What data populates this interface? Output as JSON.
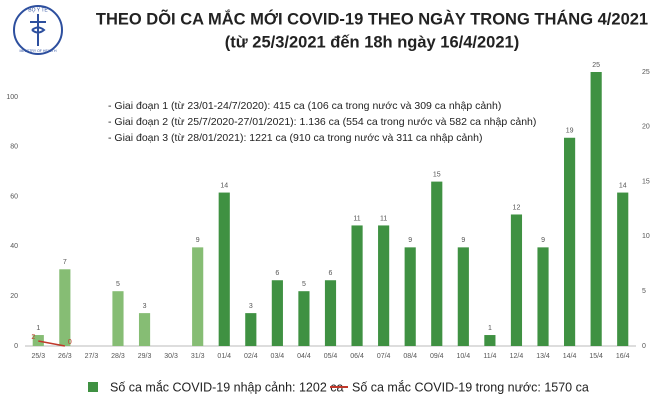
{
  "logo_text": [
    "BỘ Y TẾ",
    "MINISTRY OF HEALTH"
  ],
  "chart_data": {
    "type": "bar",
    "title": "THEO DÕI CA MẮC MỚI COVID-19 THEO NGÀY TRONG THÁNG 4/2021",
    "subtitle": "(từ 25/3/2021 đến 18h ngày 16/4/2021)",
    "annotations": [
      "- Giai đoạn 1 (từ 23/01-24/7/2020): 415 ca (106 ca trong nước và 309 ca nhập cảnh)",
      "- Giai đoạn 2 (từ 25/7/2020-27/01/2021): 1.136 ca (554 ca trong nước và 582 ca nhập cảnh)",
      "- Giai đoạn 3 (từ 28/01/2021): 1221 ca (910 ca trong nước và 311 ca nhập cảnh)"
    ],
    "categories": [
      "25/3",
      "26/3",
      "27/3",
      "28/3",
      "29/3",
      "30/3",
      "31/3",
      "01/4",
      "02/4",
      "03/4",
      "04/4",
      "05/4",
      "06/4",
      "07/4",
      "08/4",
      "09/4",
      "10/4",
      "11/4",
      "12/4",
      "13/4",
      "14/4",
      "15/4",
      "16/4"
    ],
    "series": [
      {
        "name": "Số ca mắc COVID-19 nhập cảnh: 1202 ca",
        "type": "bar",
        "axis": "y2",
        "color": "#3f9142",
        "colors": [
          "#86bd74",
          "#86bd74",
          "#86bd74",
          "#86bd74",
          "#86bd74",
          "#86bd74",
          "#86bd74",
          "#3f9142",
          "#3f9142",
          "#3f9142",
          "#3f9142",
          "#3f9142",
          "#3f9142",
          "#3f9142",
          "#3f9142",
          "#3f9142",
          "#3f9142",
          "#3f9142",
          "#3f9142",
          "#3f9142",
          "#3f9142",
          "#3f9142",
          "#3f9142"
        ],
        "values": [
          1,
          7,
          null,
          5,
          3,
          null,
          9,
          14,
          3,
          6,
          5,
          6,
          11,
          11,
          9,
          15,
          9,
          1,
          12,
          9,
          19,
          25,
          14
        ]
      },
      {
        "name": "Số ca mắc COVID-19 trong nước: 1570 ca",
        "type": "line",
        "color": "#c0392b",
        "values": [
          2,
          0,
          null,
          null,
          null,
          null,
          null,
          null,
          null,
          null,
          null,
          null,
          null,
          null,
          null,
          null,
          null,
          null,
          null,
          null,
          null,
          null,
          null
        ]
      }
    ],
    "ylim": [
      0,
      110
    ],
    "yticks": [
      0,
      20,
      40,
      60,
      80,
      100
    ],
    "y2lim": [
      0,
      25
    ],
    "y2ticks": [
      0,
      5,
      10,
      15,
      20,
      25
    ],
    "grid": false
  }
}
